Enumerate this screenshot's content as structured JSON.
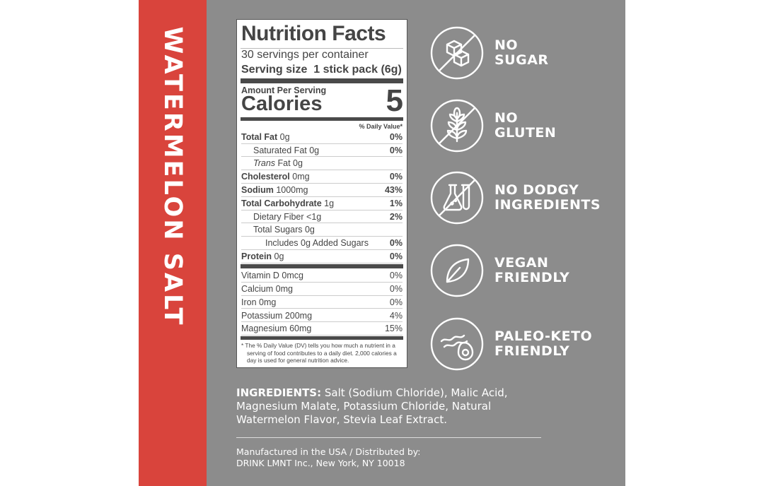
{
  "flavor": "WATERMELON SALT",
  "nutrition": {
    "title": "Nutrition Facts",
    "servings": "30 servings per container",
    "serving_size_label": "Serving size",
    "serving_size_value": "1 stick pack (6g)",
    "amount_per_serving": "Amount Per Serving",
    "calories_label": "Calories",
    "calories_value": "5",
    "dv_header": "% Daily Value*",
    "rows": [
      {
        "name": "Total Fat",
        "amount": "0g",
        "dv": "0%",
        "bold": true,
        "indent": 0
      },
      {
        "name": "Saturated Fat",
        "amount": "0g",
        "dv": "0%",
        "bold": false,
        "indent": 1
      },
      {
        "name": "Trans",
        "amount": "Fat 0g",
        "dv": "",
        "bold": false,
        "indent": 1,
        "italic": true
      },
      {
        "name": "Cholesterol",
        "amount": "0mg",
        "dv": "0%",
        "bold": true,
        "indent": 0
      },
      {
        "name": "Sodium",
        "amount": "1000mg",
        "dv": "43%",
        "bold": true,
        "indent": 0
      },
      {
        "name": "Total Carbohydrate",
        "amount": "1g",
        "dv": "1%",
        "bold": true,
        "indent": 0
      },
      {
        "name": "Dietary Fiber",
        "amount": "<1g",
        "dv": "2%",
        "bold": false,
        "indent": 1
      },
      {
        "name": "Total Sugars",
        "amount": "0g",
        "dv": "",
        "bold": false,
        "indent": 1
      },
      {
        "name": "Includes 0g Added Sugars",
        "amount": "",
        "dv": "0%",
        "bold": false,
        "indent": 2
      },
      {
        "name": "Protein",
        "amount": "0g",
        "dv": "0%",
        "bold": true,
        "indent": 0
      }
    ],
    "vitamins": [
      {
        "name": "Vitamin D 0mcg",
        "dv": "0%"
      },
      {
        "name": "Calcium 0mg",
        "dv": "0%"
      },
      {
        "name": "Iron 0mg",
        "dv": "0%"
      },
      {
        "name": "Potassium 200mg",
        "dv": "4%"
      },
      {
        "name": "Magnesium 60mg",
        "dv": "15%"
      }
    ],
    "footnote": "* The % Daily Value (DV) tells you how much a nutrient in a serving of food contributes to a daily diet. 2,000 calories a day is used for general nutrition advice."
  },
  "claims": [
    {
      "line1": "NO",
      "line2": "SUGAR",
      "icon": "sugar-cubes-crossed"
    },
    {
      "line1": "NO",
      "line2": "GLUTEN",
      "icon": "wheat-crossed"
    },
    {
      "line1": "NO DODGY",
      "line2": "INGREDIENTS",
      "icon": "lab-flask-crossed"
    },
    {
      "line1": "VEGAN",
      "line2": "FRIENDLY",
      "icon": "leaf"
    },
    {
      "line1": "PALEO-KETO",
      "line2": "FRIENDLY",
      "icon": "bacon-avocado"
    }
  ],
  "ingredients_label": "INGREDIENTS:",
  "ingredients": "Salt (Sodium Chloride), Malic Acid, Magnesium Malate, Potassium Chloride, Natural Watermelon Flavor, Stevia Leaf Extract.",
  "manufacturer_line1": "Manufactured in the USA / Distributed by:",
  "manufacturer_line2": "DRINK LMNT Inc., New York, NY 10018",
  "colors": {
    "accent_red": "#d9443c",
    "panel_gray": "#8c8c8c",
    "label_text": "#454545"
  }
}
